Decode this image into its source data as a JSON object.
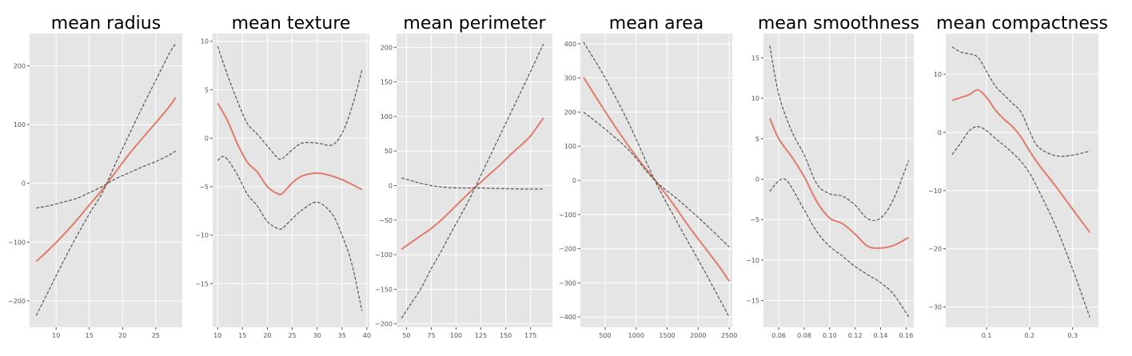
{
  "chart_data": [
    {
      "type": "line",
      "title": "mean radius",
      "xlim": [
        6,
        29
      ],
      "ylim": [
        -245,
        255
      ],
      "xticks": [
        10,
        15,
        20,
        25
      ],
      "yticks": [
        -200,
        -100,
        0,
        100,
        200
      ],
      "grid": true,
      "series": [
        {
          "role": "partial-dependence",
          "color": "#e07b6a",
          "style": "solid",
          "x": [
            7,
            9,
            11,
            13,
            15,
            17,
            19,
            21,
            23,
            25,
            27,
            28
          ],
          "y": [
            -133,
            -112,
            -89,
            -64,
            -37,
            -10,
            20,
            50,
            77,
            103,
            130,
            146
          ]
        },
        {
          "role": "ci-upper",
          "color": "#555555",
          "style": "dashed",
          "x": [
            7,
            9,
            11,
            13,
            15,
            17,
            19,
            21,
            23,
            25,
            27,
            28
          ],
          "y": [
            -42,
            -38,
            -32,
            -26,
            -16,
            -5,
            8,
            18,
            28,
            37,
            48,
            55
          ]
        },
        {
          "role": "ci-lower",
          "color": "#555555",
          "style": "dashed",
          "x": [
            7,
            9,
            11,
            13,
            15,
            17,
            19,
            21,
            23,
            25,
            27,
            28
          ],
          "y": [
            -225,
            -180,
            -135,
            -92,
            -52,
            -15,
            35,
            83,
            130,
            175,
            220,
            238
          ]
        }
      ]
    },
    {
      "type": "line",
      "title": "mean texture",
      "xlim": [
        9,
        40.5
      ],
      "ylim": [
        -19.5,
        10.8
      ],
      "xticks": [
        10,
        15,
        20,
        25,
        30,
        35,
        40
      ],
      "yticks": [
        -15,
        -10,
        -5,
        0,
        5,
        10
      ],
      "grid": true,
      "series": [
        {
          "role": "partial-dependence",
          "color": "#e07b6a",
          "style": "solid",
          "x": [
            10,
            12,
            14,
            16,
            18,
            20,
            22,
            23,
            25,
            27,
            30,
            33,
            36,
            39
          ],
          "y": [
            3.6,
            1.8,
            -0.6,
            -2.5,
            -3.5,
            -5.0,
            -5.7,
            -5.7,
            -4.6,
            -3.9,
            -3.6,
            -3.9,
            -4.5,
            -5.3
          ]
        },
        {
          "role": "ci-upper",
          "color": "#555555",
          "style": "dashed",
          "x": [
            10,
            12,
            14,
            16,
            18,
            20,
            22,
            23,
            25,
            27,
            30,
            33,
            35,
            37,
            39
          ],
          "y": [
            9.5,
            6.5,
            3.8,
            1.5,
            0.4,
            -0.8,
            -2.0,
            -2.1,
            -1.2,
            -0.5,
            -0.5,
            -0.7,
            0.5,
            3.2,
            7.0
          ]
        },
        {
          "role": "ci-lower",
          "color": "#555555",
          "style": "dashed",
          "x": [
            10,
            11,
            12,
            14,
            16,
            18,
            20,
            22,
            23,
            25,
            27,
            30,
            33,
            35,
            37,
            39
          ],
          "y": [
            -2.3,
            -1.9,
            -2.2,
            -3.8,
            -5.8,
            -7.0,
            -8.6,
            -9.3,
            -9.3,
            -8.3,
            -7.4,
            -6.6,
            -7.8,
            -10.0,
            -13.0,
            -17.8
          ]
        }
      ]
    },
    {
      "type": "line",
      "title": "mean perimeter",
      "xlim": [
        40,
        197
      ],
      "ylim": [
        -205,
        220
      ],
      "xticks": [
        50,
        75,
        100,
        125,
        150,
        175
      ],
      "yticks": [
        -200,
        -150,
        -100,
        -50,
        0,
        50,
        100,
        150,
        200
      ],
      "grid": true,
      "series": [
        {
          "role": "partial-dependence",
          "color": "#e07b6a",
          "style": "solid",
          "x": [
            45,
            55,
            65,
            75,
            85,
            95,
            105,
            115,
            125,
            135,
            145,
            155,
            165,
            175,
            188
          ],
          "y": [
            -92,
            -82,
            -72,
            -62,
            -50,
            -36,
            -22,
            -8,
            5,
            18,
            31,
            45,
            58,
            72,
            98
          ]
        },
        {
          "role": "ci-upper",
          "color": "#555555",
          "style": "dashed",
          "x": [
            45,
            55,
            65,
            75,
            85,
            95,
            105,
            115,
            125,
            135,
            150,
            165,
            175,
            188
          ],
          "y": [
            11,
            7,
            3,
            0,
            -2,
            -3,
            -3.5,
            -3.5,
            -3.5,
            -4,
            -4.5,
            -5,
            -5,
            -5
          ]
        },
        {
          "role": "ci-lower",
          "color": "#555555",
          "style": "dashed",
          "x": [
            45,
            55,
            65,
            75,
            85,
            95,
            105,
            115,
            125,
            135,
            145,
            155,
            165,
            175,
            188
          ],
          "y": [
            -192,
            -170,
            -148,
            -120,
            -95,
            -68,
            -42,
            -15,
            15,
            45,
            75,
            105,
            135,
            165,
            205
          ]
        }
      ]
    },
    {
      "type": "line",
      "title": "mean area",
      "xlim": [
        100,
        2550
      ],
      "ylim": [
        -430,
        430
      ],
      "xticks": [
        500,
        1000,
        1500,
        2000,
        2500
      ],
      "yticks": [
        -400,
        -300,
        -200,
        -100,
        0,
        100,
        200,
        300,
        400
      ],
      "grid": true,
      "series": [
        {
          "role": "partial-dependence",
          "color": "#e07b6a",
          "style": "solid",
          "x": [
            150,
            400,
            650,
            900,
            1150,
            1350,
            1600,
            1850,
            2100,
            2350,
            2500
          ],
          "y": [
            302,
            230,
            160,
            95,
            35,
            -10,
            -70,
            -135,
            -195,
            -255,
            -295
          ]
        },
        {
          "role": "ci-upper",
          "color": "#555555",
          "style": "dashed",
          "x": [
            150,
            500,
            900,
            1300,
            1700,
            2100,
            2500
          ],
          "y": [
            200,
            150,
            85,
            0,
            -60,
            -125,
            -195
          ]
        },
        {
          "role": "ci-lower",
          "color": "#555555",
          "style": "dashed",
          "x": [
            150,
            500,
            900,
            1300,
            1700,
            2100,
            2500
          ],
          "y": [
            405,
            300,
            160,
            0,
            -135,
            -265,
            -400
          ]
        }
      ]
    },
    {
      "type": "line",
      "title": "mean smoothness",
      "xlim": [
        0.048,
        0.166
      ],
      "ylim": [
        -18.3,
        18
      ],
      "xticks": [
        0.06,
        0.08,
        0.1,
        0.12,
        0.14,
        0.16
      ],
      "xtick_labels": [
        "0.06",
        "0.08",
        "0.10",
        "0.12",
        "0.14",
        "0.16"
      ],
      "yticks": [
        -15,
        -10,
        -5,
        0,
        5,
        10,
        15
      ],
      "grid": true,
      "series": [
        {
          "role": "partial-dependence",
          "color": "#e07b6a",
          "style": "solid",
          "x": [
            0.053,
            0.06,
            0.07,
            0.08,
            0.09,
            0.1,
            0.11,
            0.12,
            0.13,
            0.14,
            0.15,
            0.162
          ],
          "y": [
            7.5,
            5.0,
            2.8,
            0.3,
            -2.8,
            -4.8,
            -5.5,
            -6.8,
            -8.3,
            -8.5,
            -8.2,
            -7.2
          ]
        },
        {
          "role": "ci-upper",
          "color": "#555555",
          "style": "dashed",
          "x": [
            0.053,
            0.06,
            0.07,
            0.08,
            0.09,
            0.1,
            0.11,
            0.12,
            0.13,
            0.14,
            0.15,
            0.162
          ],
          "y": [
            16.5,
            10.5,
            6.0,
            3.0,
            -0.6,
            -1.8,
            -2.1,
            -3.2,
            -4.9,
            -4.8,
            -2.5,
            2.3
          ]
        },
        {
          "role": "ci-lower",
          "color": "#555555",
          "style": "dashed",
          "x": [
            0.053,
            0.06,
            0.065,
            0.07,
            0.08,
            0.09,
            0.1,
            0.11,
            0.12,
            0.13,
            0.14,
            0.15,
            0.162
          ],
          "y": [
            -1.5,
            -0.2,
            0.0,
            -1.0,
            -3.8,
            -6.5,
            -8.3,
            -9.5,
            -10.8,
            -11.8,
            -12.8,
            -14.2,
            -17.0
          ]
        }
      ]
    },
    {
      "type": "line",
      "title": "mean compactness",
      "xlim": [
        0.005,
        0.36
      ],
      "ylim": [
        -33.5,
        17
      ],
      "xticks": [
        0.1,
        0.2,
        0.3
      ],
      "yticks": [
        -30,
        -20,
        -10,
        0,
        10
      ],
      "grid": true,
      "series": [
        {
          "role": "partial-dependence",
          "color": "#e07b6a",
          "style": "solid",
          "x": [
            0.02,
            0.04,
            0.06,
            0.08,
            0.1,
            0.12,
            0.14,
            0.16,
            0.18,
            0.2,
            0.22,
            0.26,
            0.3,
            0.34
          ],
          "y": [
            5.5,
            6.0,
            6.5,
            7.3,
            6.0,
            3.9,
            2.3,
            1.0,
            -0.8,
            -3.2,
            -5.4,
            -9.2,
            -13.2,
            -17.2
          ]
        },
        {
          "role": "ci-upper",
          "color": "#555555",
          "style": "dashed",
          "x": [
            0.02,
            0.04,
            0.06,
            0.08,
            0.1,
            0.12,
            0.14,
            0.16,
            0.18,
            0.2,
            0.22,
            0.26,
            0.3,
            0.34
          ],
          "y": [
            14.7,
            13.8,
            13.5,
            12.9,
            10.5,
            8.0,
            6.5,
            5.0,
            3.5,
            0.2,
            -2.5,
            -4.0,
            -3.9,
            -3.2
          ]
        },
        {
          "role": "ci-lower",
          "color": "#555555",
          "style": "dashed",
          "x": [
            0.02,
            0.04,
            0.06,
            0.08,
            0.1,
            0.12,
            0.14,
            0.16,
            0.18,
            0.2,
            0.22,
            0.26,
            0.3,
            0.34
          ],
          "y": [
            -3.8,
            -1.8,
            0.3,
            1.0,
            0.3,
            -1.0,
            -2.2,
            -3.5,
            -5.0,
            -7.0,
            -9.8,
            -16.0,
            -23.5,
            -31.8
          ]
        }
      ]
    }
  ]
}
